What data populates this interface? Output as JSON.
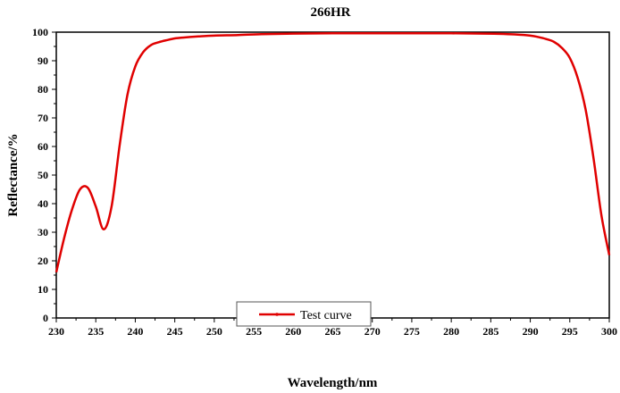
{
  "chart_data": {
    "type": "line",
    "title": "266HR",
    "xlabel": "Wavelength/nm",
    "ylabel": "Reflectance/%",
    "xlim": [
      230,
      300
    ],
    "ylim": [
      0,
      100
    ],
    "xticks": [
      230,
      235,
      240,
      245,
      250,
      255,
      260,
      265,
      270,
      275,
      280,
      285,
      290,
      295,
      300
    ],
    "yticks": [
      0,
      10,
      20,
      30,
      40,
      50,
      60,
      70,
      80,
      90,
      100
    ],
    "grid": false,
    "legend": {
      "position": "bottom-center",
      "entries": [
        "Test curve"
      ]
    },
    "series_color": "#e00000",
    "series": [
      {
        "name": "Test curve",
        "x": [
          230,
          231,
          232,
          233,
          234,
          235,
          236,
          237,
          238,
          239,
          240,
          241,
          242,
          243,
          244,
          245,
          246,
          248,
          250,
          253,
          256,
          260,
          265,
          270,
          275,
          280,
          284,
          286,
          288,
          290,
          291,
          292,
          293,
          294,
          295,
          296,
          297,
          298,
          299,
          300
        ],
        "y": [
          16,
          28,
          38,
          45,
          45.5,
          39,
          31,
          39,
          60,
          78,
          88,
          93,
          95.5,
          96.5,
          97.2,
          97.8,
          98.1,
          98.5,
          98.8,
          99.0,
          99.3,
          99.5,
          99.6,
          99.6,
          99.6,
          99.6,
          99.5,
          99.4,
          99.2,
          98.8,
          98.3,
          97.6,
          96.6,
          94.5,
          91,
          84,
          73,
          56,
          36,
          22
        ]
      }
    ]
  }
}
